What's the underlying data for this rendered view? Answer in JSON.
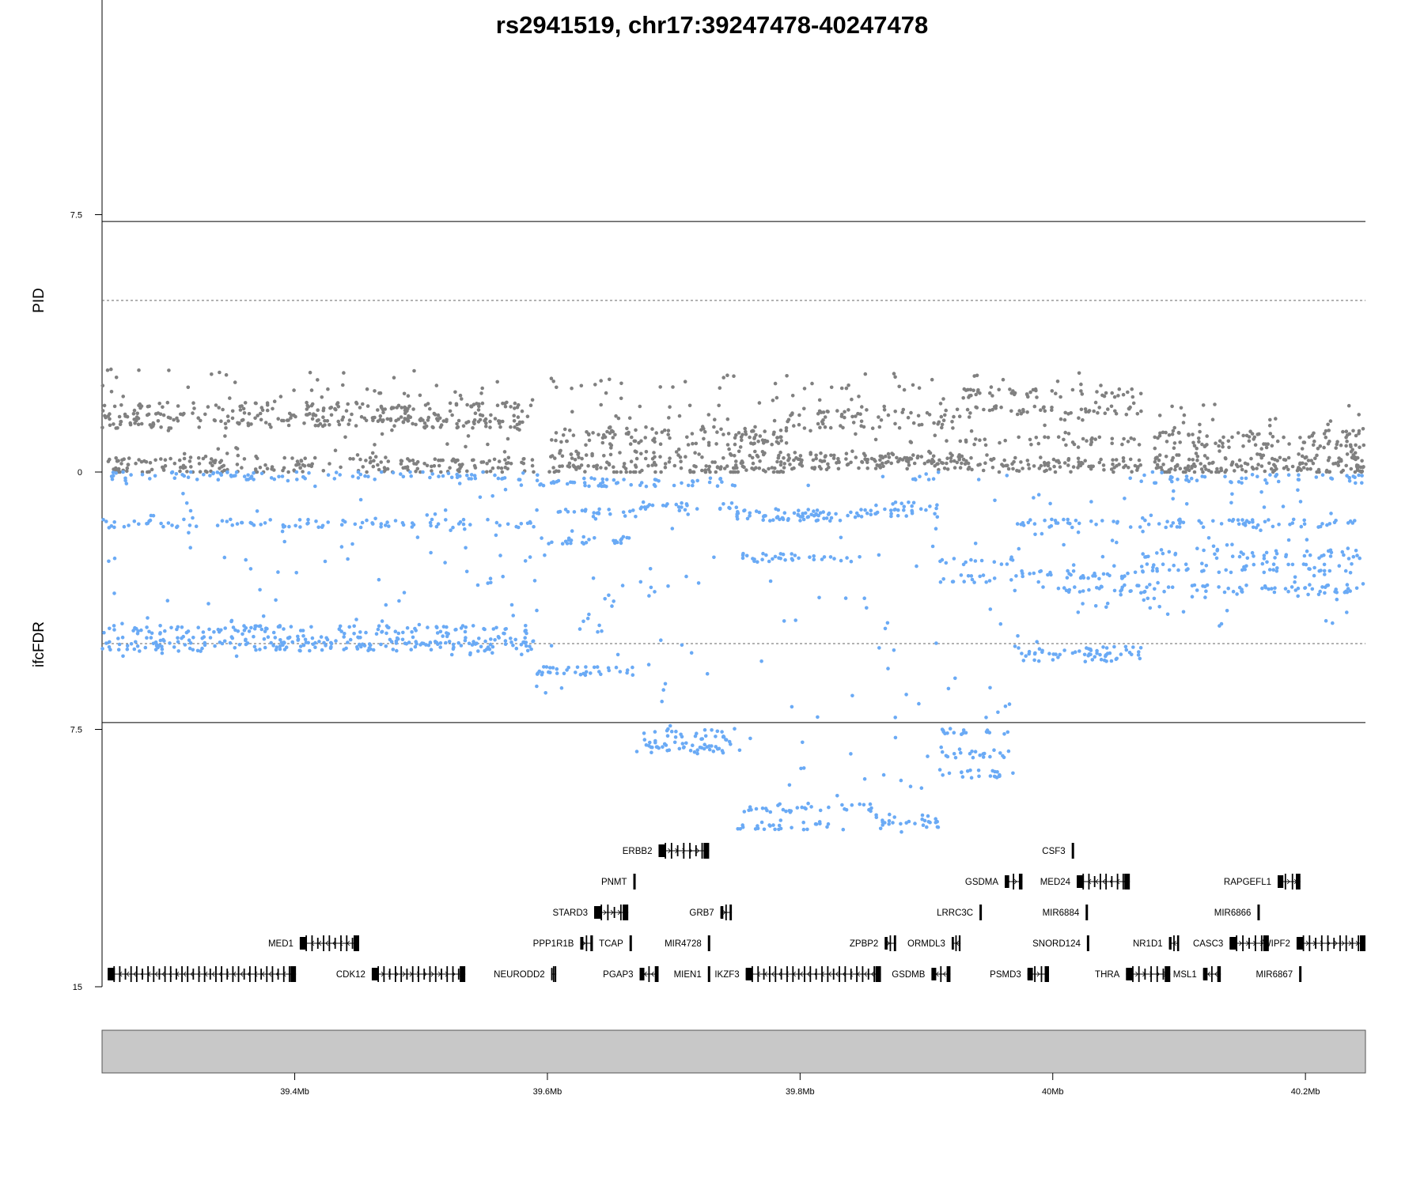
{
  "chart_data": {
    "type": "scatter",
    "title": "rs2941519, chr17:39247478-40247478",
    "x_range_mb": [
      39.2475,
      40.2475
    ],
    "x_ticks": [
      "39.4Mb",
      "39.6Mb",
      "39.8Mb",
      "40Mb",
      "40.2Mb"
    ],
    "x_tick_values": [
      39.4,
      39.6,
      39.8,
      40.0,
      40.2
    ],
    "top_panel": {
      "ylabel": "PID",
      "ylim": [
        0,
        15
      ],
      "y_tick_labels": [
        "15",
        "7.5",
        "0"
      ],
      "y_tick_values": [
        15,
        7.5,
        0
      ],
      "solid_line": 7.3,
      "dashed_line": 5,
      "point_color": "#808080"
    },
    "bottom_panel": {
      "ylabel": "ifcFDR",
      "ylim": [
        0,
        15
      ],
      "y_tick_labels": [
        "7.5",
        "15"
      ],
      "y_tick_values": [
        7.5,
        15
      ],
      "solid_line": 7.3,
      "dashed_line": 5,
      "point_color": "#6aaaf5"
    },
    "pid_segments": [
      {
        "x0": 39.2475,
        "x1": 39.59,
        "levels": [
          1.4,
          1.6,
          1.9,
          0.3,
          0.05
        ],
        "y_min": 0.0,
        "y_max": 3.0
      },
      {
        "x0": 39.6,
        "x1": 39.79,
        "levels": [
          0.2,
          0.5,
          0.9,
          1.2,
          0.05
        ],
        "y_min": 0.0,
        "y_max": 3.0
      },
      {
        "x0": 39.79,
        "x1": 39.93,
        "levels": [
          0.45,
          0.35,
          0.2,
          1.7,
          1.4
        ],
        "y_min": 0.0,
        "y_max": 3.0
      },
      {
        "x0": 39.93,
        "x1": 40.07,
        "levels": [
          0.1,
          0.3,
          0.9,
          1.8,
          2.3
        ],
        "y_min": 0.0,
        "y_max": 3.0
      },
      {
        "x0": 40.08,
        "x1": 40.2475,
        "levels": [
          0.15,
          0.4,
          0.8,
          1.1,
          0.05
        ],
        "y_min": 0.0,
        "y_max": 2.0
      }
    ],
    "ifcfdr_segments": [
      {
        "x0": 39.2475,
        "x1": 39.59,
        "levels": [
          4.6,
          4.9,
          5.1,
          1.5,
          0.1
        ],
        "y_min": 0.0,
        "y_max": 5.4
      },
      {
        "x0": 39.59,
        "x1": 39.67,
        "levels": [
          0.3,
          1.2,
          2.0,
          5.8
        ],
        "y_min": 0.0,
        "y_max": 6.5
      },
      {
        "x0": 39.67,
        "x1": 39.75,
        "levels": [
          7.6,
          7.9,
          8.1,
          1.0,
          0.3
        ],
        "y_min": 0.0,
        "y_max": 8.6
      },
      {
        "x0": 39.75,
        "x1": 39.86,
        "levels": [
          1.3,
          1.2,
          10.3,
          9.8,
          2.5
        ],
        "y_min": 0.0,
        "y_max": 10.5
      },
      {
        "x0": 39.86,
        "x1": 39.91,
        "levels": [
          10.3,
          10.1,
          1.0,
          0.2,
          1.2
        ],
        "y_min": 0.0,
        "y_max": 10.5
      },
      {
        "x0": 39.91,
        "x1": 39.97,
        "levels": [
          8.8,
          8.2,
          7.6,
          2.6,
          3.1
        ],
        "y_min": 0.0,
        "y_max": 9.5
      },
      {
        "x0": 39.97,
        "x1": 40.07,
        "levels": [
          3.0,
          3.4,
          5.2,
          5.4,
          1.5
        ],
        "y_min": 0.0,
        "y_max": 5.6
      },
      {
        "x0": 40.07,
        "x1": 40.2475,
        "levels": [
          0.2,
          1.5,
          2.4,
          2.8,
          3.4
        ],
        "y_min": 0.0,
        "y_max": 4.5
      }
    ],
    "genes": [
      {
        "name": "ERBB2",
        "start": 39.688,
        "end": 39.728,
        "row": 1,
        "strand": "+"
      },
      {
        "name": "CSF3",
        "start": 40.015,
        "end": 40.017,
        "row": 1,
        "strand": "+"
      },
      {
        "name": "PNMT",
        "start": 39.668,
        "end": 39.67,
        "row": 2,
        "strand": "+"
      },
      {
        "name": "GSDMA",
        "start": 39.962,
        "end": 39.976,
        "row": 2,
        "strand": "+"
      },
      {
        "name": "MED24",
        "start": 40.019,
        "end": 40.061,
        "row": 2,
        "strand": "-"
      },
      {
        "name": "RAPGEFL1",
        "start": 40.178,
        "end": 40.196,
        "row": 2,
        "strand": "+"
      },
      {
        "name": "STARD3",
        "start": 39.637,
        "end": 39.664,
        "row": 3,
        "strand": "+"
      },
      {
        "name": "GRB7",
        "start": 39.737,
        "end": 39.746,
        "row": 3,
        "strand": "+"
      },
      {
        "name": "LRRC3C",
        "start": 39.942,
        "end": 39.945,
        "row": 3,
        "strand": "-"
      },
      {
        "name": "MIR6884",
        "start": 40.026,
        "end": 40.027,
        "row": 3,
        "strand": "+"
      },
      {
        "name": "MIR6866",
        "start": 40.162,
        "end": 40.163,
        "row": 3,
        "strand": "+"
      },
      {
        "name": "MED1",
        "start": 39.404,
        "end": 39.451,
        "row": 4,
        "strand": "-"
      },
      {
        "name": "PPP1R1B",
        "start": 39.626,
        "end": 39.636,
        "row": 4,
        "strand": "+"
      },
      {
        "name": "TCAP",
        "start": 39.665,
        "end": 39.667,
        "row": 4,
        "strand": "+"
      },
      {
        "name": "MIR4728",
        "start": 39.727,
        "end": 39.728,
        "row": 4,
        "strand": "+"
      },
      {
        "name": "ZPBP2",
        "start": 39.867,
        "end": 39.876,
        "row": 4,
        "strand": "+"
      },
      {
        "name": "ORMDL3",
        "start": 39.92,
        "end": 39.927,
        "row": 4,
        "strand": "-"
      },
      {
        "name": "SNORD124",
        "start": 40.027,
        "end": 40.028,
        "row": 4,
        "strand": "+"
      },
      {
        "name": "NR1D1",
        "start": 40.092,
        "end": 40.1,
        "row": 4,
        "strand": "-"
      },
      {
        "name": "CASC3",
        "start": 40.14,
        "end": 40.171,
        "row": 4,
        "strand": "+"
      },
      {
        "name": "WIPF2",
        "start": 40.193,
        "end": 40.2475,
        "row": 4,
        "strand": "+"
      },
      {
        "name": "CDK12",
        "start": 39.461,
        "end": 39.535,
        "row": 5,
        "strand": "+"
      },
      {
        "name": "NEURODD2",
        "start": 39.603,
        "end": 39.607,
        "row": 5,
        "strand": "-"
      },
      {
        "name": "PGAP3",
        "start": 39.673,
        "end": 39.688,
        "row": 5,
        "strand": "-"
      },
      {
        "name": "MIEN1",
        "start": 39.727,
        "end": 39.729,
        "row": 5,
        "strand": "-"
      },
      {
        "name": "IKZF3",
        "start": 39.757,
        "end": 39.864,
        "row": 5,
        "strand": "-"
      },
      {
        "name": "GSDMB",
        "start": 39.904,
        "end": 39.919,
        "row": 5,
        "strand": "-"
      },
      {
        "name": "PSMD3",
        "start": 39.98,
        "end": 39.997,
        "row": 5,
        "strand": "+"
      },
      {
        "name": "THRA",
        "start": 40.058,
        "end": 40.093,
        "row": 5,
        "strand": "+"
      },
      {
        "name": "MSL1",
        "start": 40.119,
        "end": 40.133,
        "row": 5,
        "strand": "-"
      },
      {
        "name": "MIR6867",
        "start": 40.195,
        "end": 40.196,
        "row": 5,
        "strand": "+"
      },
      {
        "name": "",
        "start": 39.252,
        "end": 39.401,
        "row": 5,
        "strand": "-"
      }
    ]
  }
}
